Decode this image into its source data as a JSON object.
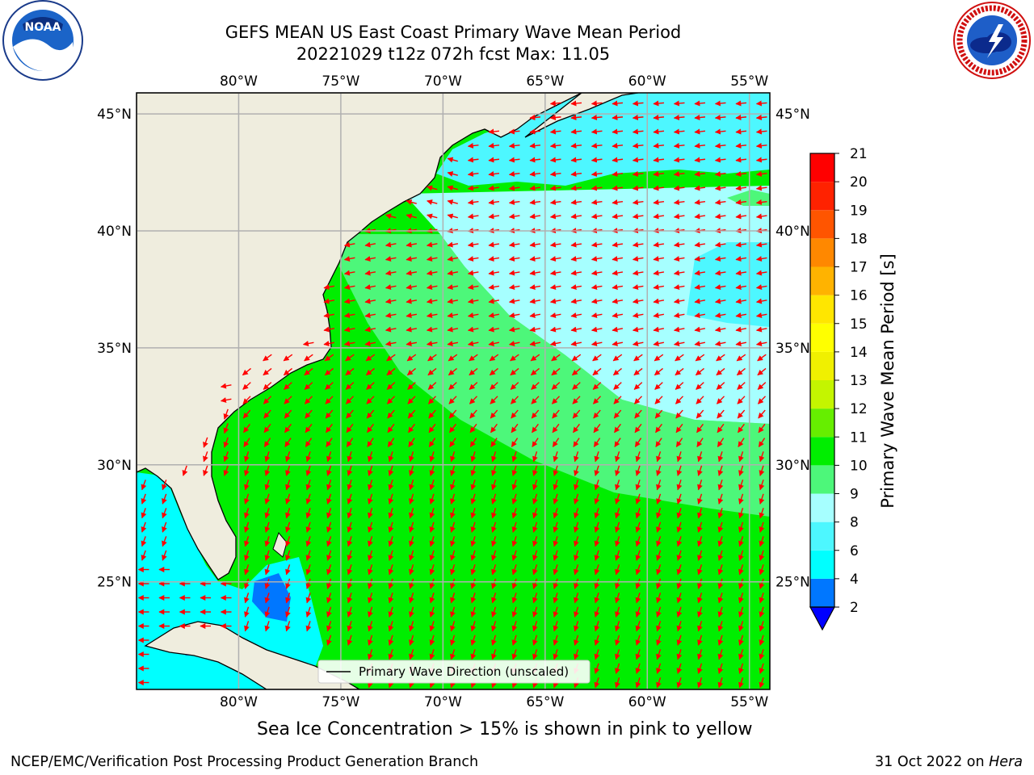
{
  "header": {
    "title_line1": "GEFS MEAN US East Coast Primary Wave Mean Period",
    "title_line2": "20221029 t12z 072h fcst   Max: 11.05"
  },
  "logos": {
    "left": {
      "name": "noaa-logo",
      "text": "NOAA",
      "ring_text": "NATIONAL OCEANIC AND ATMOSPHERIC ADMINISTRATION · U.S. DEPARTMENT OF COMMERCE"
    },
    "right": {
      "name": "nws-logo",
      "ring_text": "NATIONAL WEATHER SERVICE"
    }
  },
  "map": {
    "lon_range": [
      -85,
      -54
    ],
    "lat_range": [
      20.4,
      45.9
    ],
    "lon_ticks": [
      {
        "value": -80,
        "label": "80°W"
      },
      {
        "value": -75,
        "label": "75°W"
      },
      {
        "value": -70,
        "label": "70°W"
      },
      {
        "value": -65,
        "label": "65°W"
      },
      {
        "value": -60,
        "label": "60°W"
      },
      {
        "value": -55,
        "label": "55°W"
      }
    ],
    "lat_ticks": [
      {
        "value": 45,
        "label": "45°N"
      },
      {
        "value": 40,
        "label": "40°N"
      },
      {
        "value": 35,
        "label": "35°N"
      },
      {
        "value": 30,
        "label": "30°N"
      },
      {
        "value": 25,
        "label": "25°N"
      }
    ],
    "land_color": "#efedde",
    "grid_color": "#b0b0b0",
    "arrow_color": "#ff0000",
    "legend_label": "Primary Wave Direction (unscaled)"
  },
  "colorbar": {
    "label": "Primary Wave Mean Period [s]",
    "levels": [
      {
        "value": "2",
        "color": "#0000ff"
      },
      {
        "value": "4",
        "color": "#0077ff"
      },
      {
        "value": "6",
        "color": "#00ffff"
      },
      {
        "value": "8",
        "color": "#4df7ff"
      },
      {
        "value": "9",
        "color": "#a6ffff"
      },
      {
        "value": "10",
        "color": "#4df77a"
      },
      {
        "value": "11",
        "color": "#00ee00"
      },
      {
        "value": "12",
        "color": "#66ee00"
      },
      {
        "value": "13",
        "color": "#c4f500"
      },
      {
        "value": "14",
        "color": "#f0f000"
      },
      {
        "value": "15",
        "color": "#ffff00"
      },
      {
        "value": "16",
        "color": "#ffe600"
      },
      {
        "value": "17",
        "color": "#ffb300"
      },
      {
        "value": "18",
        "color": "#ff8800"
      },
      {
        "value": "19",
        "color": "#ff5500"
      },
      {
        "value": "20",
        "color": "#ff2200"
      },
      {
        "value": "21",
        "color": "#ff0000"
      }
    ]
  },
  "caption": "Sea Ice Concentration > 15% is shown in pink to yellow",
  "footer": {
    "left": "NCEP/EMC/Verification Post Processing Product Generation Branch",
    "right_date": "31 Oct 2022 on ",
    "right_host": "Hera"
  }
}
